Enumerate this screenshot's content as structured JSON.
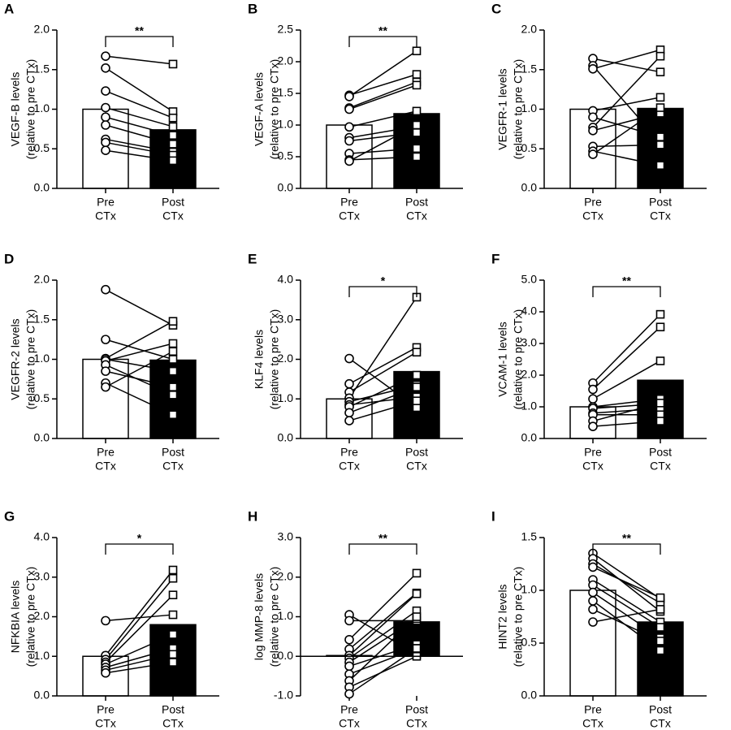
{
  "chart_data": [
    {
      "type": "paired-bar",
      "panel": "A",
      "ylabel": [
        "VEGF-B levels",
        "(relative to pre CTx)"
      ],
      "categories": [
        [
          "Pre",
          "CTx"
        ],
        [
          "Post",
          "CTx"
        ]
      ],
      "values": [
        1.0,
        0.74
      ],
      "bar_colors": [
        "#ffffff",
        "#000000"
      ],
      "pairs": {
        "pre": [
          1.67,
          1.52,
          1.23,
          1.02,
          0.9,
          0.8,
          0.62,
          0.58,
          0.48
        ],
        "post": [
          1.57,
          0.97,
          0.89,
          0.78,
          0.67,
          0.56,
          0.46,
          0.42,
          0.35
        ]
      },
      "ylim": [
        0,
        2
      ],
      "yticks": [
        {
          "value": 0,
          "label": "0.0"
        },
        {
          "value": 0.5,
          "label": "0.5"
        },
        {
          "value": 1,
          "label": "1.0"
        },
        {
          "value": 1.5,
          "label": "1.5"
        },
        {
          "value": 2,
          "label": "2.0"
        }
      ],
      "significance": "**"
    },
    {
      "type": "paired-bar",
      "panel": "B",
      "ylabel": [
        "VEGF-A levels",
        "(relative to pre CTx)"
      ],
      "categories": [
        [
          "Pre",
          "CTx"
        ],
        [
          "Post",
          "CTx"
        ]
      ],
      "values": [
        1.0,
        1.18
      ],
      "bar_colors": [
        "#ffffff",
        "#000000"
      ],
      "pairs": {
        "pre": [
          1.47,
          1.45,
          1.27,
          1.25,
          0.97,
          0.8,
          0.75,
          0.55,
          0.45,
          0.43
        ],
        "post": [
          1.8,
          2.17,
          1.68,
          1.63,
          1.22,
          0.98,
          0.88,
          0.63,
          0.5,
          1.0
        ]
      },
      "ylim": [
        0,
        2.5
      ],
      "yticks": [
        {
          "value": 0,
          "label": "0.0"
        },
        {
          "value": 0.5,
          "label": "0.5"
        },
        {
          "value": 1,
          "label": "1.0"
        },
        {
          "value": 1.5,
          "label": "1.5"
        },
        {
          "value": 2,
          "label": "2.0"
        },
        {
          "value": 2.5,
          "label": "2.5"
        }
      ],
      "significance": "**"
    },
    {
      "type": "paired-bar",
      "panel": "C",
      "ylabel": [
        "VEGFR-1 levels",
        "(relative to pre CTx)"
      ],
      "categories": [
        [
          "Pre",
          "CTx"
        ],
        [
          "Post",
          "CTx"
        ]
      ],
      "values": [
        1.0,
        1.01
      ],
      "bar_colors": [
        "#ffffff",
        "#000000"
      ],
      "pairs": {
        "pre": [
          1.64,
          1.55,
          1.51,
          0.98,
          0.9,
          0.77,
          0.73,
          0.53,
          0.47,
          0.43
        ],
        "post": [
          1.47,
          0.58,
          1.75,
          1.15,
          0.65,
          1.67,
          0.95,
          0.55,
          0.29,
          1.02
        ]
      },
      "ylim": [
        0,
        2
      ],
      "yticks": [
        {
          "value": 0,
          "label": "0.0"
        },
        {
          "value": 0.5,
          "label": "0.5"
        },
        {
          "value": 1,
          "label": "1.0"
        },
        {
          "value": 1.5,
          "label": "1.5"
        },
        {
          "value": 2,
          "label": "2.0"
        }
      ]
    },
    {
      "type": "paired-bar",
      "panel": "D",
      "ylabel": [
        "VEGFR-2 levels",
        "(relative to pre CTx)"
      ],
      "categories": [
        [
          "Pre",
          "CTx"
        ],
        [
          "Post",
          "CTx"
        ]
      ],
      "values": [
        1.0,
        0.99
      ],
      "bar_colors": [
        "#ffffff",
        "#000000"
      ],
      "pairs": {
        "pre": [
          1.88,
          1.25,
          1.01,
          1.0,
          0.98,
          0.93,
          0.85,
          0.7,
          0.65
        ],
        "post": [
          1.43,
          1.0,
          1.48,
          0.85,
          1.2,
          0.55,
          0.65,
          0.3,
          1.1
        ]
      },
      "ylim": [
        0,
        2
      ],
      "yticks": [
        {
          "value": 0,
          "label": "0.0"
        },
        {
          "value": 0.5,
          "label": "0.5"
        },
        {
          "value": 1,
          "label": "1.0"
        },
        {
          "value": 1.5,
          "label": "1.5"
        },
        {
          "value": 2,
          "label": "2.0"
        }
      ]
    },
    {
      "type": "paired-bar",
      "panel": "E",
      "ylabel": [
        "KLF4 levels",
        "(relative to pre CTx)"
      ],
      "categories": [
        [
          "Pre",
          "CTx"
        ],
        [
          "Post",
          "CTx"
        ]
      ],
      "values": [
        1.0,
        1.69
      ],
      "bar_colors": [
        "#ffffff",
        "#000000"
      ],
      "pairs": {
        "pre": [
          2.02,
          1.38,
          1.17,
          1.02,
          0.93,
          0.85,
          0.8,
          0.65,
          0.45
        ],
        "post": [
          0.78,
          2.3,
          2.18,
          3.57,
          1.35,
          1.05,
          1.6,
          1.3,
          0.95
        ]
      },
      "ylim": [
        0,
        4
      ],
      "yticks": [
        {
          "value": 0,
          "label": "0.0"
        },
        {
          "value": 1,
          "label": "1.0"
        },
        {
          "value": 2,
          "label": "2.0"
        },
        {
          "value": 3,
          "label": "3.0"
        },
        {
          "value": 4,
          "label": "4.0"
        }
      ],
      "significance": "*"
    },
    {
      "type": "paired-bar",
      "panel": "F",
      "ylabel": [
        "VCAM-1 levels",
        "(relative to pre CTx)"
      ],
      "categories": [
        [
          "Pre",
          "CTx"
        ],
        [
          "Post",
          "CTx"
        ]
      ],
      "values": [
        1.0,
        1.84
      ],
      "bar_colors": [
        "#ffffff",
        "#000000"
      ],
      "pairs": {
        "pre": [
          1.75,
          1.55,
          1.25,
          1.0,
          0.95,
          0.8,
          0.75,
          0.55,
          0.38
        ],
        "post": [
          3.92,
          3.52,
          2.45,
          1.25,
          1.1,
          0.95,
          0.75,
          1.12,
          0.55
        ]
      },
      "ylim": [
        0,
        5
      ],
      "yticks": [
        {
          "value": 0,
          "label": "0.0"
        },
        {
          "value": 1,
          "label": "1.0"
        },
        {
          "value": 2,
          "label": "2.0"
        },
        {
          "value": 3,
          "label": "3.0"
        },
        {
          "value": 4,
          "label": "4.0"
        },
        {
          "value": 5,
          "label": "5.0"
        }
      ],
      "significance": "**"
    },
    {
      "type": "paired-bar",
      "panel": "G",
      "ylabel": [
        "NFKBIA levels",
        "(relative to pre CTx)"
      ],
      "categories": [
        [
          "Pre",
          "CTx"
        ],
        [
          "Post",
          "CTx"
        ]
      ],
      "values": [
        1.0,
        1.8
      ],
      "bar_colors": [
        "#ffffff",
        "#000000"
      ],
      "pairs": {
        "pre": [
          1.9,
          1.02,
          0.92,
          0.85,
          0.8,
          0.72,
          0.65,
          0.58
        ],
        "post": [
          2.05,
          3.18,
          2.97,
          2.55,
          1.55,
          1.2,
          1.05,
          0.85
        ]
      },
      "ylim": [
        0,
        4
      ],
      "yticks": [
        {
          "value": 0,
          "label": "0.0"
        },
        {
          "value": 1,
          "label": "1.0"
        },
        {
          "value": 2,
          "label": "2.0"
        },
        {
          "value": 3,
          "label": "3.0"
        },
        {
          "value": 4,
          "label": "4.0"
        }
      ],
      "significance": "*"
    },
    {
      "type": "paired-bar",
      "panel": "H",
      "ylabel": [
        "log MMP-8 levels",
        "(relative to pre CTx)"
      ],
      "categories": [
        [
          "Pre",
          "CTx"
        ],
        [
          "Post",
          "CTx"
        ]
      ],
      "values": [
        0.02,
        0.87
      ],
      "bar_colors": [
        "#ffffff",
        "#000000"
      ],
      "pairs": {
        "pre": [
          1.05,
          0.9,
          0.42,
          0.18,
          0.02,
          -0.05,
          -0.15,
          -0.25,
          -0.45,
          -0.62,
          -0.78,
          -0.95
        ],
        "post": [
          0.05,
          0.9,
          2.1,
          1.6,
          1.58,
          1.15,
          0.95,
          0.3,
          0.2,
          1.0,
          0.0,
          0.2
        ]
      },
      "ylim": [
        -1,
        3
      ],
      "yticks": [
        {
          "value": -1,
          "label": "-1.0"
        },
        {
          "value": 0,
          "label": "0.0"
        },
        {
          "value": 1,
          "label": "1.0"
        },
        {
          "value": 2,
          "label": "2.0"
        },
        {
          "value": 3,
          "label": "3.0"
        }
      ],
      "significance": "**"
    },
    {
      "type": "paired-bar",
      "panel": "I",
      "ylabel": [
        "HINT2 levels",
        "(relative to pre CTx)"
      ],
      "categories": [
        [
          "Pre",
          "CTx"
        ],
        [
          "Post",
          "CTx"
        ]
      ],
      "values": [
        1.0,
        0.7
      ],
      "bar_colors": [
        "#ffffff",
        "#000000"
      ],
      "pairs": {
        "pre": [
          1.35,
          1.3,
          1.25,
          1.22,
          1.1,
          1.05,
          0.98,
          0.9,
          0.82,
          0.7
        ],
        "post": [
          0.92,
          0.8,
          0.88,
          0.93,
          0.7,
          0.65,
          0.55,
          0.43,
          0.52,
          0.82
        ]
      },
      "ylim": [
        0,
        1.5
      ],
      "yticks": [
        {
          "value": 0,
          "label": "0.0"
        },
        {
          "value": 0.5,
          "label": "0.5"
        },
        {
          "value": 1,
          "label": "1.0"
        },
        {
          "value": 1.5,
          "label": "1.5"
        }
      ],
      "significance": "**"
    }
  ]
}
